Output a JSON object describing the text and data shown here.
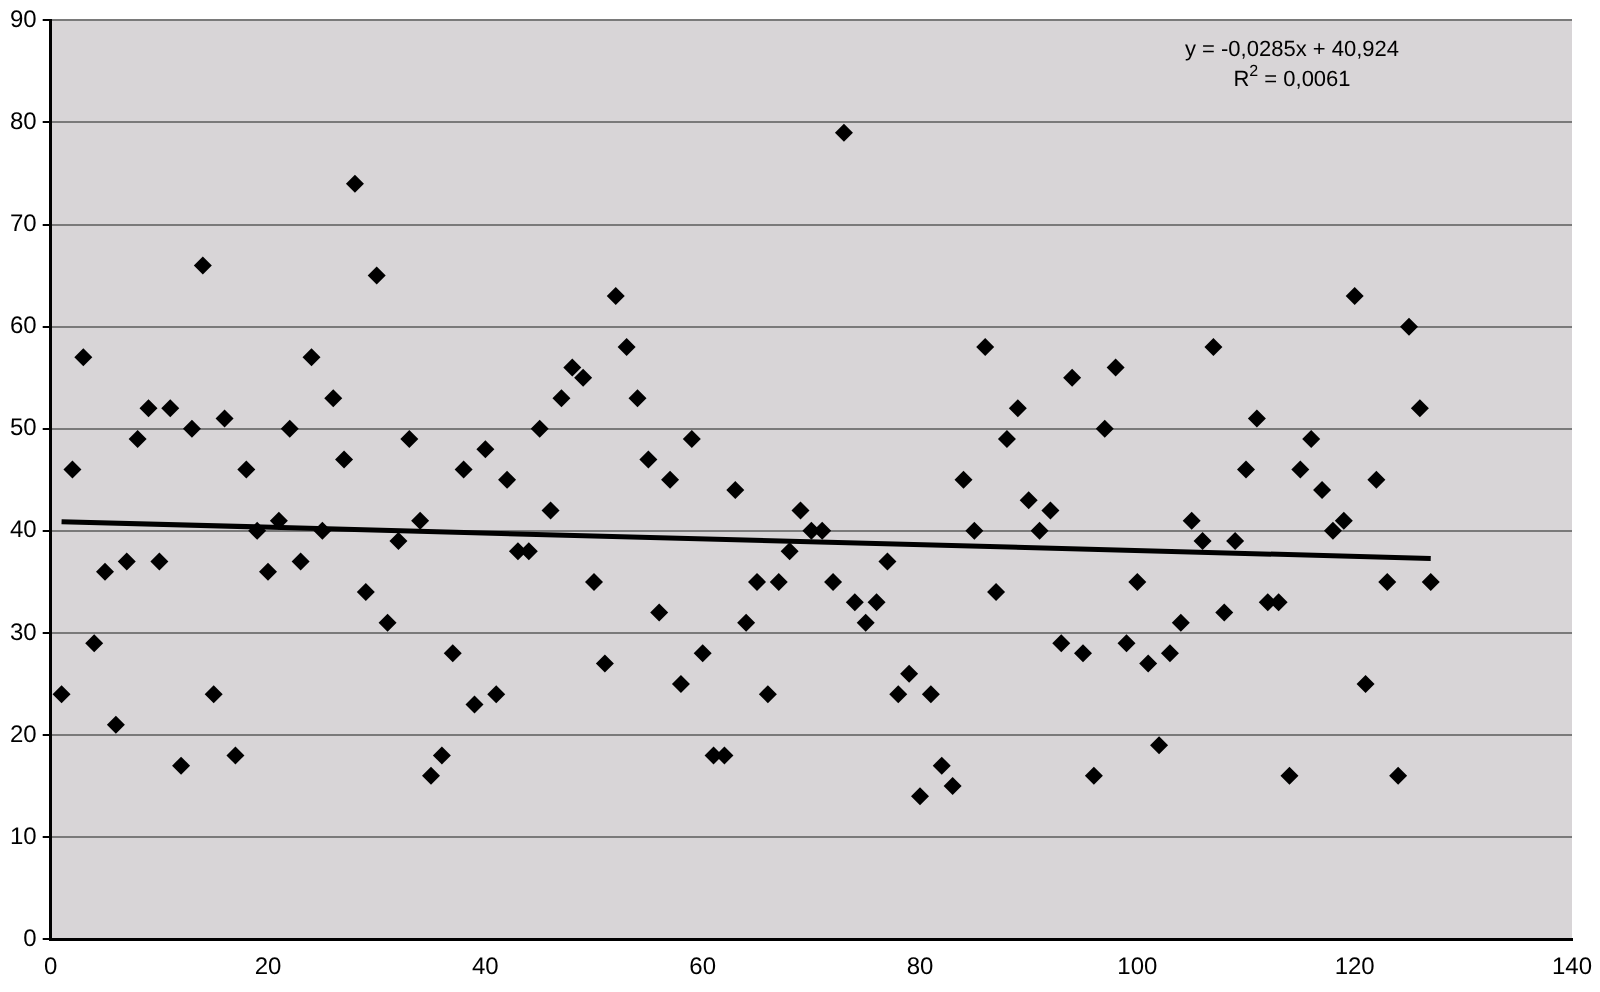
{
  "chart_data": {
    "type": "scatter",
    "xlim": [
      0,
      140
    ],
    "xticks": [
      0,
      20,
      40,
      60,
      80,
      100,
      120,
      140
    ],
    "ylim": [
      0,
      90
    ],
    "yticks": [
      0,
      10,
      20,
      30,
      40,
      50,
      60,
      70,
      80,
      90
    ],
    "grid": "y",
    "legend": false,
    "marker": "diamond",
    "annotations": [
      "y = -0,0285x + 40,924",
      "R$^{2}$ = 0,0061"
    ],
    "series": [
      {
        "color": "#000000",
        "x": [
          1,
          2,
          3,
          4,
          5,
          6,
          7,
          8,
          9,
          10,
          11,
          12,
          13,
          14,
          15,
          16,
          17,
          18,
          19,
          20,
          21,
          22,
          23,
          24,
          25,
          26,
          27,
          28,
          29,
          30,
          31,
          32,
          33,
          34,
          35,
          36,
          37,
          38,
          39,
          40,
          41,
          42,
          43,
          44,
          45,
          46,
          47,
          48,
          49,
          50,
          51,
          52,
          53,
          54,
          55,
          56,
          57,
          58,
          59,
          60,
          61,
          62,
          63,
          64,
          65,
          66,
          67,
          68,
          69,
          70,
          71,
          72,
          73,
          74,
          75,
          76,
          77,
          78,
          79,
          80,
          81,
          82,
          83,
          84,
          85,
          86,
          87,
          88,
          89,
          90,
          91,
          92,
          93,
          94,
          95,
          96,
          97,
          98,
          99,
          100,
          101,
          102,
          103,
          104,
          105,
          106,
          107,
          108,
          109,
          110,
          111,
          112,
          113,
          114,
          115,
          116,
          117,
          118,
          119,
          120,
          121,
          122,
          123,
          124,
          125,
          126,
          127
        ],
        "values": [
          24,
          46,
          57,
          29,
          36,
          21,
          37,
          49,
          52,
          37,
          52,
          17,
          50,
          66,
          24,
          51,
          18,
          46,
          40,
          36,
          41,
          50,
          37,
          57,
          40,
          53,
          47,
          74,
          34,
          65,
          31,
          39,
          49,
          41,
          16,
          18,
          28,
          46,
          23,
          48,
          24,
          45,
          38,
          38,
          50,
          42,
          53,
          56,
          55,
          35,
          27,
          63,
          58,
          53,
          47,
          32,
          45,
          25,
          49,
          28,
          18,
          18,
          44,
          31,
          35,
          24,
          35,
          38,
          42,
          40,
          40,
          35,
          79,
          33,
          31,
          33,
          37,
          24,
          26,
          14,
          24,
          17,
          15,
          45,
          40,
          58,
          34,
          49,
          52,
          43,
          40,
          42,
          29,
          55,
          28,
          16,
          50,
          56,
          29,
          35,
          27,
          19,
          28,
          31,
          41,
          39,
          58,
          32,
          39,
          46,
          51,
          33,
          33,
          16,
          46,
          49,
          44,
          40,
          41,
          63,
          25,
          45,
          35,
          16,
          60,
          52,
          35
        ]
      },
      {
        "type": "line",
        "color": "#000000",
        "marker": "none",
        "line_style": "solid",
        "x": [
          1,
          127
        ],
        "values": [
          40.9,
          37.3
        ]
      }
    ]
  }
}
